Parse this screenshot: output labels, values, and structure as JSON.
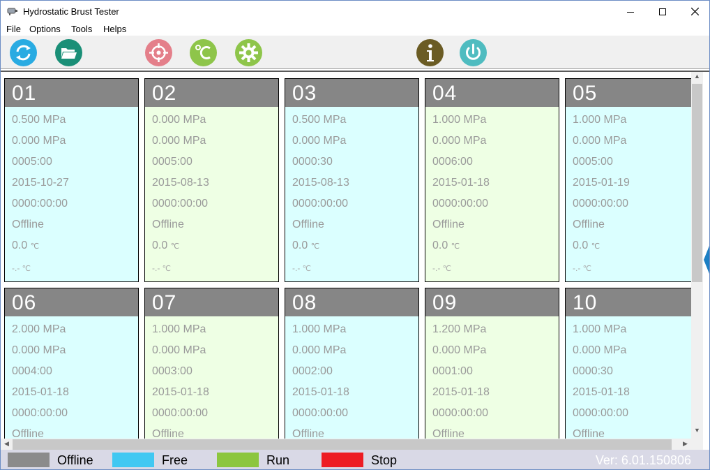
{
  "window": {
    "title": "Hydrostatic Brust Tester"
  },
  "menu": [
    "File",
    "Options",
    "Tools",
    "Helps"
  ],
  "toolbar": [
    {
      "name": "refresh-button",
      "icon": "refresh-icon",
      "color": "#29abe2"
    },
    {
      "name": "open-folder-button",
      "icon": "folder-open-icon",
      "color": "#1a8f77"
    },
    {
      "name": "target-button",
      "icon": "target-icon",
      "color": "#e47f8a"
    },
    {
      "name": "temperature-button",
      "icon": "celsius-icon",
      "color": "#8ec54a"
    },
    {
      "name": "settings-button",
      "icon": "gear-icon",
      "color": "#8ec54a"
    },
    {
      "name": "info-button",
      "icon": "info-icon",
      "color": "#6b5c24"
    },
    {
      "name": "power-button",
      "icon": "power-icon",
      "color": "#4fbcc0"
    }
  ],
  "stations": [
    {
      "num": "01",
      "state": "free",
      "set_pressure": "0.500 MPa",
      "pressure": "0.000 MPa",
      "hold": "0005:00",
      "date": "2015-10-27",
      "elapsed": "0000:00:00",
      "status": "Offline",
      "temp": "0.0",
      "temp_unit": "℃",
      "temp2": "-.-",
      "temp2_unit": "℃"
    },
    {
      "num": "02",
      "state": "run",
      "set_pressure": "0.000 MPa",
      "pressure": "0.000 MPa",
      "hold": "0005:00",
      "date": "2015-08-13",
      "elapsed": "0000:00:00",
      "status": "Offline",
      "temp": "0.0",
      "temp_unit": "℃",
      "temp2": "-.-",
      "temp2_unit": "℃"
    },
    {
      "num": "03",
      "state": "free",
      "set_pressure": "0.500 MPa",
      "pressure": "0.000 MPa",
      "hold": "0000:30",
      "date": "2015-08-13",
      "elapsed": "0000:00:00",
      "status": "Offline",
      "temp": "0.0",
      "temp_unit": "℃",
      "temp2": "-.-",
      "temp2_unit": "℃"
    },
    {
      "num": "04",
      "state": "run",
      "set_pressure": "1.000 MPa",
      "pressure": "0.000 MPa",
      "hold": "0006:00",
      "date": "2015-01-18",
      "elapsed": "0000:00:00",
      "status": "Offline",
      "temp": "0.0",
      "temp_unit": "℃",
      "temp2": "-.-",
      "temp2_unit": "℃"
    },
    {
      "num": "05",
      "state": "free",
      "set_pressure": "1.000 MPa",
      "pressure": "0.000 MPa",
      "hold": "0005:00",
      "date": "2015-01-19",
      "elapsed": "0000:00:00",
      "status": "Offline",
      "temp": "0.0",
      "temp_unit": "℃",
      "temp2": "-.-",
      "temp2_unit": "℃"
    },
    {
      "num": "06",
      "state": "free",
      "set_pressure": "2.000 MPa",
      "pressure": "0.000 MPa",
      "hold": "0004:00",
      "date": "2015-01-18",
      "elapsed": "0000:00:00",
      "status": "Offline"
    },
    {
      "num": "07",
      "state": "run",
      "set_pressure": "1.000 MPa",
      "pressure": "0.000 MPa",
      "hold": "0003:00",
      "date": "2015-01-18",
      "elapsed": "0000:00:00",
      "status": "Offline"
    },
    {
      "num": "08",
      "state": "free",
      "set_pressure": "1.000 MPa",
      "pressure": "0.000 MPa",
      "hold": "0002:00",
      "date": "2015-01-18",
      "elapsed": "0000:00:00",
      "status": "Offline"
    },
    {
      "num": "09",
      "state": "run",
      "set_pressure": "1.200 MPa",
      "pressure": "0.000 MPa",
      "hold": "0001:00",
      "date": "2015-01-18",
      "elapsed": "0000:00:00",
      "status": "Offline"
    },
    {
      "num": "10",
      "state": "free",
      "set_pressure": "1.000 MPa",
      "pressure": "0.000 MPa",
      "hold": "0000:30",
      "date": "2015-01-18",
      "elapsed": "0000:00:00",
      "status": "Offline"
    }
  ],
  "legend": [
    {
      "label": "Offline",
      "color": "#8b8b8b"
    },
    {
      "label": "Free",
      "color": "#41c8f2"
    },
    {
      "label": "Run",
      "color": "#8cc63f"
    },
    {
      "label": "Stop",
      "color": "#ed1c24"
    }
  ],
  "version": "Ver: 6.01.150806"
}
